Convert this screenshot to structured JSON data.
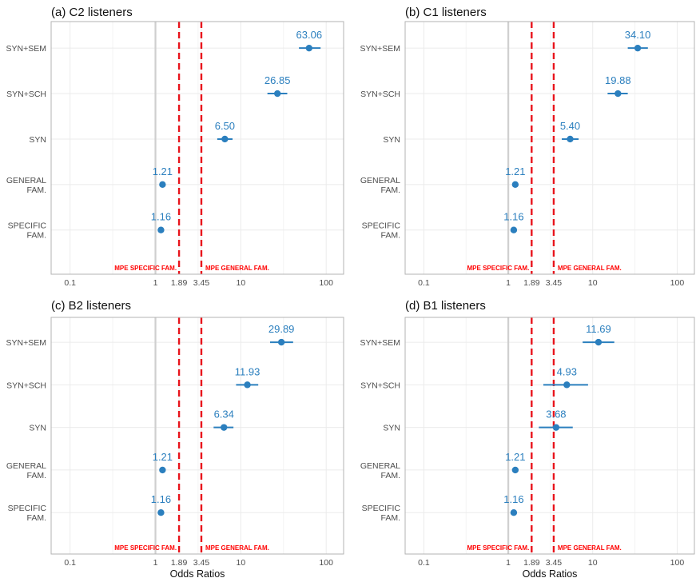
{
  "chart_data": [
    {
      "type": "scatter",
      "title": "(a) C2 listeners",
      "categories": [
        "SYN+SEM",
        "SYN+SCH",
        "SYN",
        "GENERAL FAM.",
        "SPECIFIC FAM."
      ],
      "category_lines": [
        [
          "SYN+SEM"
        ],
        [
          "SYN+SCH"
        ],
        [
          "SYN"
        ],
        [
          "GENERAL",
          "FAM."
        ],
        [
          "SPECIFIC",
          "FAM."
        ]
      ],
      "values": [
        63.06,
        26.85,
        6.5,
        1.21,
        1.16
      ],
      "value_labels": [
        "63.06",
        "26.85",
        "6.50",
        "1.21",
        "1.16"
      ],
      "ci_low": [
        48,
        20.5,
        5.3,
        1.15,
        1.1
      ],
      "ci_high": [
        86,
        35,
        8.0,
        1.28,
        1.22
      ]
    },
    {
      "type": "scatter",
      "title": "(b) C1 listeners",
      "categories": [
        "SYN+SEM",
        "SYN+SCH",
        "SYN",
        "GENERAL FAM.",
        "SPECIFIC FAM."
      ],
      "category_lines": [
        [
          "SYN+SEM"
        ],
        [
          "SYN+SCH"
        ],
        [
          "SYN"
        ],
        [
          "GENERAL",
          "FAM."
        ],
        [
          "SPECIFIC",
          "FAM."
        ]
      ],
      "values": [
        34.1,
        19.88,
        5.4,
        1.21,
        1.16
      ],
      "value_labels": [
        "34.10",
        "19.88",
        "5.40",
        "1.21",
        "1.16"
      ],
      "ci_low": [
        26,
        15,
        4.3,
        1.14,
        1.1
      ],
      "ci_high": [
        45,
        26,
        6.8,
        1.28,
        1.22
      ]
    },
    {
      "type": "scatter",
      "title": "(c) B2 listeners",
      "categories": [
        "SYN+SEM",
        "SYN+SCH",
        "SYN",
        "GENERAL FAM.",
        "SPECIFIC FAM."
      ],
      "category_lines": [
        [
          "SYN+SEM"
        ],
        [
          "SYN+SCH"
        ],
        [
          "SYN"
        ],
        [
          "GENERAL",
          "FAM."
        ],
        [
          "SPECIFIC",
          "FAM."
        ]
      ],
      "values": [
        29.89,
        11.93,
        6.34,
        1.21,
        1.16
      ],
      "value_labels": [
        "29.89",
        "11.93",
        "6.34",
        "1.21",
        "1.16"
      ],
      "ci_low": [
        22,
        8.8,
        4.8,
        1.14,
        1.1
      ],
      "ci_high": [
        41,
        16,
        8.2,
        1.28,
        1.22
      ]
    },
    {
      "type": "scatter",
      "title": "(d) B1 listeners",
      "categories": [
        "SYN+SEM",
        "SYN+SCH",
        "SYN",
        "GENERAL FAM.",
        "SPECIFIC FAM."
      ],
      "category_lines": [
        [
          "SYN+SEM"
        ],
        [
          "SYN+SCH"
        ],
        [
          "SYN"
        ],
        [
          "GENERAL",
          "FAM."
        ],
        [
          "SPECIFIC",
          "FAM."
        ]
      ],
      "values": [
        11.69,
        4.93,
        3.68,
        1.21,
        1.16
      ],
      "value_labels": [
        "11.69",
        "4.93",
        "3.68",
        "1.21",
        "1.16"
      ],
      "ci_low": [
        7.6,
        2.6,
        2.3,
        1.14,
        1.1
      ],
      "ci_high": [
        18,
        8.8,
        5.8,
        1.28,
        1.22
      ]
    }
  ],
  "x_axis": {
    "label": "Odds Ratios",
    "scale": "log10",
    "range": [
      0.06,
      160
    ],
    "ticks": [
      0.1,
      1,
      1.89,
      3.45,
      10,
      100
    ],
    "tick_labels": [
      "0.1",
      "1",
      "1.89",
      "3.45",
      "10",
      "100"
    ],
    "grid": true
  },
  "reference_lines": [
    {
      "x": 1,
      "style": "solid",
      "color": "#cfcfcf"
    },
    {
      "x": 1.89,
      "style": "dashed",
      "color": "#e8141c",
      "label": "MPE SPECIFIC FAM."
    },
    {
      "x": 3.45,
      "style": "dashed",
      "color": "#e8141c",
      "label": "MPE GENERAL FAM."
    }
  ],
  "colors": {
    "point": "#2b7fbe",
    "value_label": "#2b7fbe",
    "mpe_line": "#e8141c",
    "mpe_label": "#ff0000",
    "grid": "#ebebeb",
    "panel_border": "#b3b3b3"
  }
}
